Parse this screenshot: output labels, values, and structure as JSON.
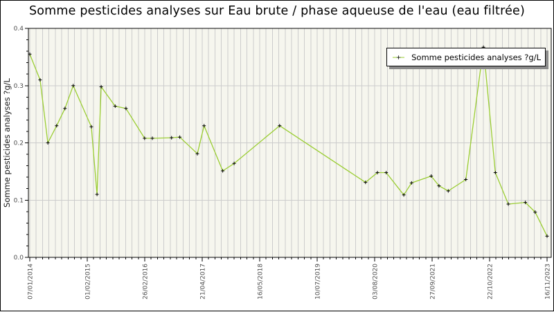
{
  "chart_data": {
    "type": "line",
    "title": "Somme pesticides analyses sur Eau brute / phase aqueuse de l'eau (eau filtrée)",
    "ylabel": "Somme pesticides analyses ?g/L",
    "xlabel": "",
    "legend": {
      "position": "top-right",
      "label": "Somme pesticides analyses ?g/L"
    },
    "ylim": [
      0,
      0.4
    ],
    "y_major_ticks": [
      0,
      0.1,
      0.2,
      0.3,
      0.4
    ],
    "y_tick_labels": [
      "0.0",
      "0.1",
      "0.2",
      "0.3",
      "0.4"
    ],
    "y_minor_step": 0.02,
    "x_tick_labels": [
      "07/01/2014",
      "01/02/2015",
      "26/02/2016",
      "21/04/2017",
      "16/05/2018",
      "10/07/2019",
      "03/08/2020",
      "27/09/2021",
      "22/10/2022",
      "16/11/2023"
    ],
    "x_minor_divisions_per_label": 9,
    "grid": {
      "vertical": "every minor tick",
      "horizontal": "every major tick"
    },
    "x_encoding": "fraction of x-axis between first labeled tick (07/01/2014) and last (16/11/2023)",
    "series": [
      {
        "name": "Somme pesticides analyses ?g/L",
        "marker": "plus",
        "points": [
          [
            0.0,
            0.355
          ],
          [
            0.02,
            0.31
          ],
          [
            0.035,
            0.2
          ],
          [
            0.052,
            0.23
          ],
          [
            0.068,
            0.26
          ],
          [
            0.084,
            0.3
          ],
          [
            0.119,
            0.228
          ],
          [
            0.13,
            0.11
          ],
          [
            0.138,
            0.298
          ],
          [
            0.165,
            0.264
          ],
          [
            0.186,
            0.26
          ],
          [
            0.222,
            0.208
          ],
          [
            0.237,
            0.208
          ],
          [
            0.274,
            0.209
          ],
          [
            0.29,
            0.21
          ],
          [
            0.324,
            0.181
          ],
          [
            0.337,
            0.23
          ],
          [
            0.373,
            0.151
          ],
          [
            0.395,
            0.164
          ],
          [
            0.483,
            0.23
          ],
          [
            0.649,
            0.131
          ],
          [
            0.672,
            0.148
          ],
          [
            0.689,
            0.148
          ],
          [
            0.723,
            0.109
          ],
          [
            0.738,
            0.13
          ],
          [
            0.776,
            0.142
          ],
          [
            0.791,
            0.125
          ],
          [
            0.809,
            0.116
          ],
          [
            0.843,
            0.136
          ],
          [
            0.877,
            0.367
          ],
          [
            0.9,
            0.148
          ],
          [
            0.925,
            0.093
          ],
          [
            0.958,
            0.096
          ],
          [
            0.977,
            0.079
          ],
          [
            1.0,
            0.037
          ]
        ]
      }
    ],
    "colors": {
      "line": "#9acd32",
      "marker": "#000000",
      "plot_bg": "#f6f6ee",
      "grid": "#cccccc",
      "axis": "#000000",
      "tick_label": "#4d4d4d",
      "legend_shadow": "#8c8c8c"
    }
  }
}
